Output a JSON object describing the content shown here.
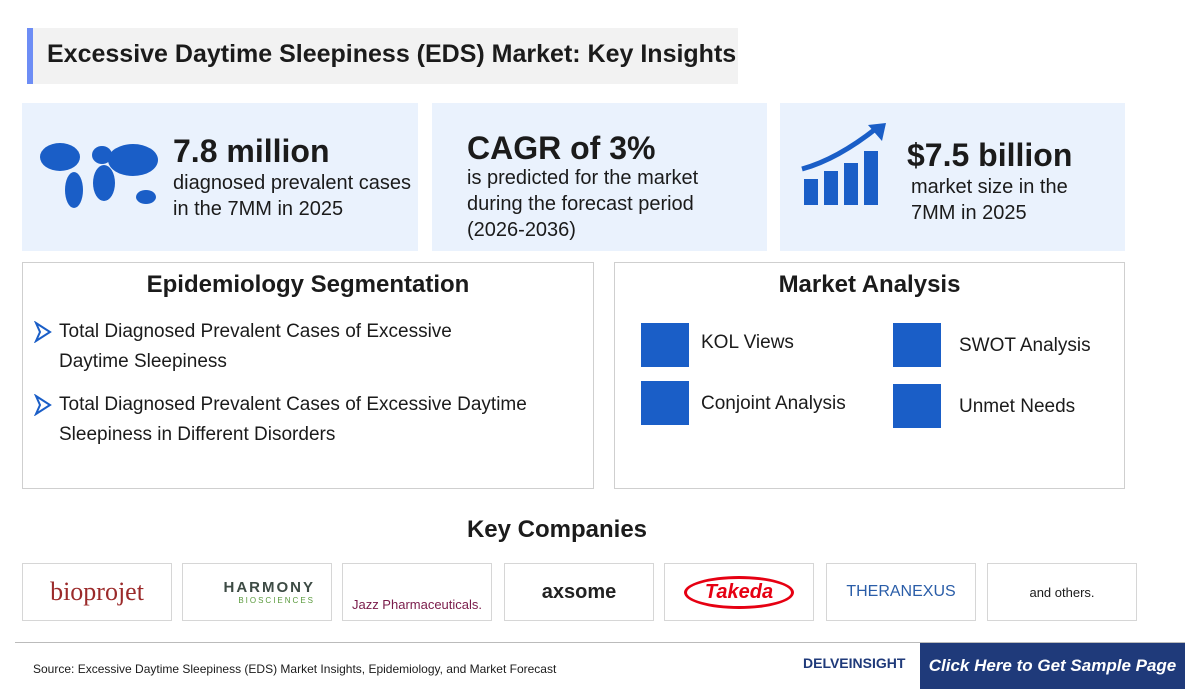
{
  "header": {
    "title": "Excessive Daytime Sleepiness (EDS) Market: Key Insights"
  },
  "stats": [
    {
      "value": "7.8 million",
      "lines": [
        "diagnosed prevalent cases",
        "in the 7MM in 2025"
      ]
    },
    {
      "value": "CAGR of 3%",
      "lines": [
        "is predicted for the market",
        "during the forecast period",
        "(2026-2036)"
      ]
    },
    {
      "value": "$7.5 billion",
      "lines": [
        "market size in the",
        "7MM in 2025"
      ]
    }
  ],
  "epidemiology": {
    "title": "Epidemiology Segmentation",
    "items": [
      [
        "Total Diagnosed Prevalent Cases of Excessive",
        "Daytime Sleepiness"
      ],
      [
        "Total Diagnosed Prevalent Cases of Excessive Daytime",
        "Sleepiness in Different Disorders"
      ]
    ]
  },
  "market_analysis": {
    "title": "Market Analysis",
    "items": [
      "KOL Views",
      "SWOT Analysis",
      "Conjoint Analysis",
      "Unmet Needs"
    ]
  },
  "key_companies": {
    "title": "Key Companies",
    "companies": [
      "bioprojet",
      "HARMONY",
      "BIOSCIENCES",
      "Jazz Pharmaceuticals.",
      "axsome",
      "Takeda",
      "THERANEXUS",
      "and others."
    ]
  },
  "footer": {
    "source": "Source: Excessive Daytime Sleepiness (EDS) Market Insights, Epidemiology, and Market Forecast",
    "brand": "DELVEINSIGHT",
    "cta": "Click Here to Get Sample Page"
  }
}
